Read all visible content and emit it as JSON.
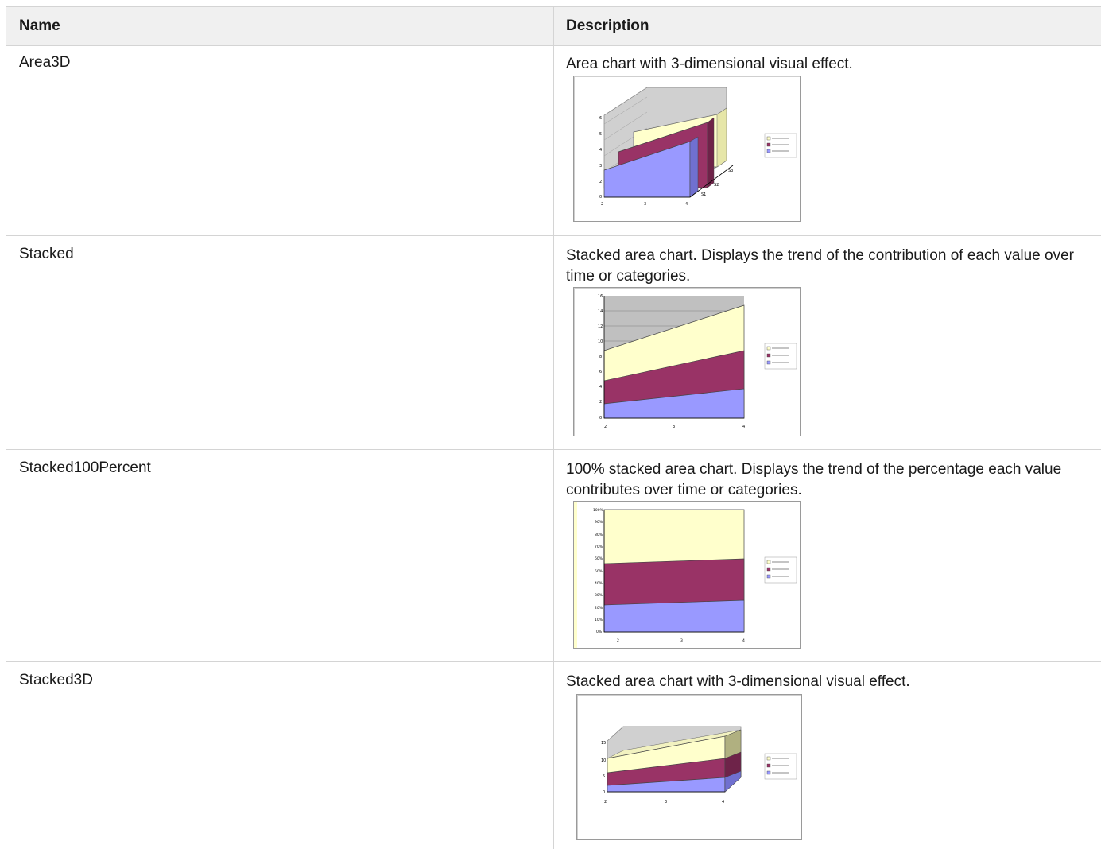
{
  "table": {
    "headers": {
      "name": "Name",
      "description": "Description"
    },
    "rows": [
      {
        "name": "Area3D",
        "description": "Area chart with 3-dimensional visual effect."
      },
      {
        "name": "Stacked",
        "description": "Stacked area chart. Displays the trend of the contribution of each value over time or categories."
      },
      {
        "name": "Stacked100Percent",
        "description": "100% stacked area chart. Displays the trend of the percentage each value contributes over time or categories."
      },
      {
        "name": "Stacked3D",
        "description": "Stacked area chart with 3-dimensional visual effect."
      }
    ]
  },
  "colors": {
    "series1": "#9999ff",
    "series2": "#993366",
    "series3": "#ffffcc",
    "wall": "#c0c0c0",
    "header_bg": "#f0f0f0",
    "border": "#d4d4d4"
  }
}
